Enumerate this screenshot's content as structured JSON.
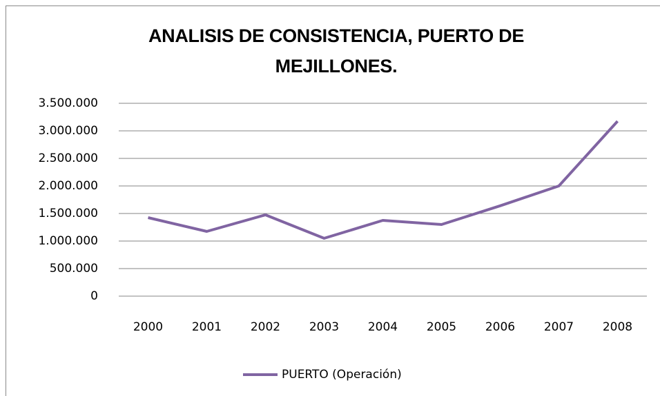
{
  "chart_data": {
    "type": "line",
    "title": "ANALISIS DE CONSISTENCIA, PUERTO DE MEJILLONES.",
    "categories": [
      "2000",
      "2001",
      "2002",
      "2003",
      "2004",
      "2005",
      "2006",
      "2007",
      "2008"
    ],
    "series": [
      {
        "name": "PUERTO (Operación)",
        "color": "#8064a2",
        "values": [
          1425000,
          1175000,
          1475000,
          1050000,
          1375000,
          1300000,
          1640000,
          2000000,
          3175000
        ]
      }
    ],
    "ylim": [
      0,
      3500000
    ],
    "yticks": [
      0,
      {
        "value": 500000,
        "label": "500.000"
      },
      {
        "value": 1000000,
        "label": "1.000.000"
      },
      {
        "value": 1500000,
        "label": "1.500.000"
      },
      {
        "value": 2000000,
        "label": "2.000.000"
      },
      {
        "value": 2500000,
        "label": "2.500.000"
      },
      {
        "value": 3000000,
        "label": "3.000.000"
      },
      {
        "value": 3500000,
        "label": "3.500.000"
      }
    ],
    "grid": true,
    "legend": "bottom"
  }
}
